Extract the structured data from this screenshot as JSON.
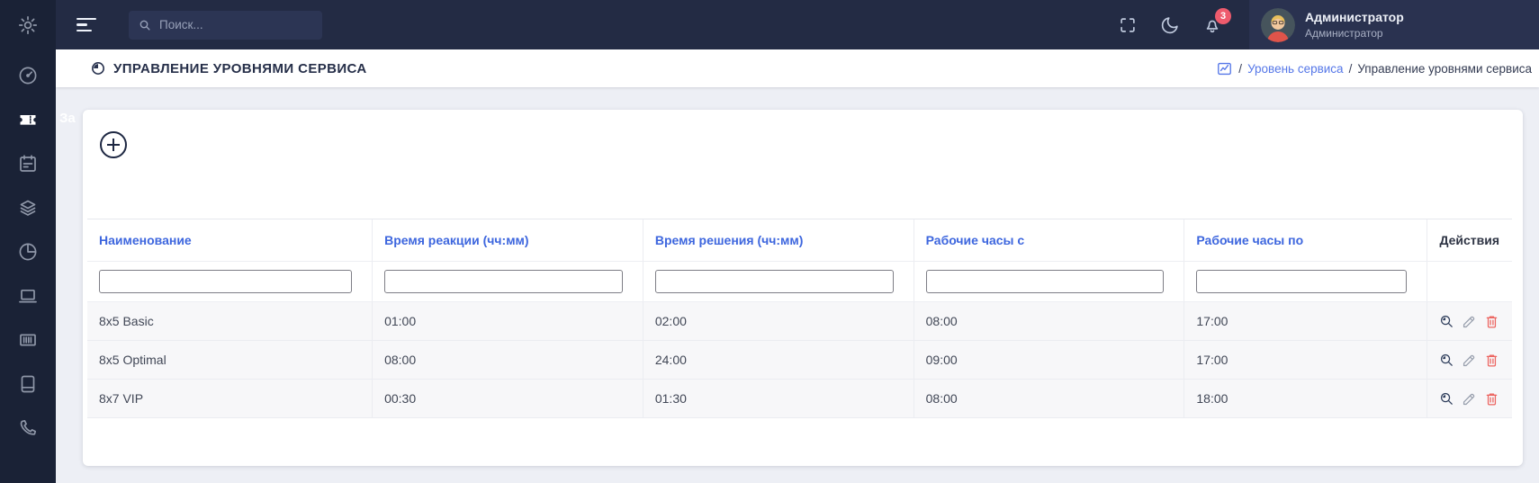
{
  "app": {
    "search_placeholder": "Поиск...",
    "notification_count": "3",
    "user": {
      "name": "Администратор",
      "role": "Администратор"
    }
  },
  "sidebar": {
    "items": [
      {
        "icon": "gear",
        "active": false
      },
      {
        "icon": "speedometer",
        "active": false
      },
      {
        "icon": "ticket",
        "active": true
      },
      {
        "icon": "calendar",
        "active": false
      },
      {
        "icon": "layers",
        "active": false
      },
      {
        "icon": "pie-chart",
        "active": false
      },
      {
        "icon": "laptop",
        "active": false
      },
      {
        "icon": "barcode",
        "active": false
      },
      {
        "icon": "book",
        "active": false
      },
      {
        "icon": "phone",
        "active": false
      }
    ]
  },
  "header": {
    "title": "УПРАВЛЕНИЕ УРОВНЯМИ СЕРВИСА",
    "breadcrumb": {
      "separator": "/",
      "link": "Уровень сервиса",
      "current": "Управление уровнями сервиса"
    }
  },
  "main": {
    "hidden_text": "За"
  },
  "table": {
    "columns": [
      {
        "label": "Наименование",
        "key": "name",
        "filter": true
      },
      {
        "label": "Время реакции (чч:мм)",
        "key": "reaction_time",
        "filter": true
      },
      {
        "label": "Время решения (чч:мм)",
        "key": "resolution_time",
        "filter": true
      },
      {
        "label": "Рабочие часы с",
        "key": "work_hours_from",
        "filter": true
      },
      {
        "label": "Рабочие часы по",
        "key": "work_hours_to",
        "filter": true
      },
      {
        "label": "Действия",
        "key": "actions",
        "filter": false
      }
    ],
    "filter_values": [
      "",
      "",
      "",
      "",
      ""
    ],
    "rows": [
      {
        "name": "8x5 Basic",
        "reaction_time": "01:00",
        "resolution_time": "02:00",
        "work_hours_from": "08:00",
        "work_hours_to": "17:00"
      },
      {
        "name": "8x5 Optimal",
        "reaction_time": "08:00",
        "resolution_time": "24:00",
        "work_hours_from": "09:00",
        "work_hours_to": "17:00"
      },
      {
        "name": "8x7 VIP",
        "reaction_time": "00:30",
        "resolution_time": "01:30",
        "work_hours_from": "08:00",
        "work_hours_to": "18:00"
      }
    ]
  },
  "colors": {
    "topbar": "#232b44",
    "sidebar": "#1a2236",
    "user_block": "#2a3250",
    "accent_blue": "#3d66de",
    "link_blue": "#5577e8",
    "badge_red": "#ee5b6d",
    "delete_red": "#ec6460",
    "page_bg": "#edeff5",
    "row_bg": "#f7f7f9"
  }
}
